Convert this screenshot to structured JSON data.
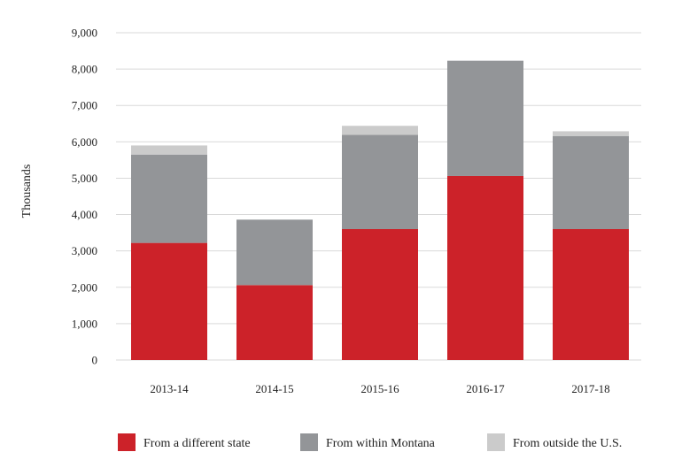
{
  "chart_data": {
    "type": "bar",
    "stacked": true,
    "title": "",
    "xlabel": "",
    "ylabel": "Thousands",
    "ylim": [
      0,
      9000
    ],
    "yticks": [
      0,
      1000,
      2000,
      3000,
      4000,
      5000,
      6000,
      7000,
      8000,
      9000
    ],
    "ytick_labels": [
      "0",
      "1,000",
      "2,000",
      "3,000",
      "4,000",
      "5,000",
      "6,000",
      "7,000",
      "8,000",
      "9,000"
    ],
    "grid": true,
    "legend_position": "bottom",
    "categories": [
      "2013-14",
      "2014-15",
      "2015-16",
      "2016-17",
      "2017-18"
    ],
    "series": [
      {
        "name": "From a different state",
        "color": "#cc2229",
        "values": [
          3220,
          2060,
          3600,
          5060,
          3600
        ]
      },
      {
        "name": "From within Montana",
        "color": "#939598",
        "values": [
          2430,
          1800,
          2590,
          3170,
          2560
        ]
      },
      {
        "name": "From outside the U.S.",
        "color": "#cbcbcb",
        "values": [
          250,
          0,
          250,
          0,
          130
        ]
      }
    ]
  }
}
